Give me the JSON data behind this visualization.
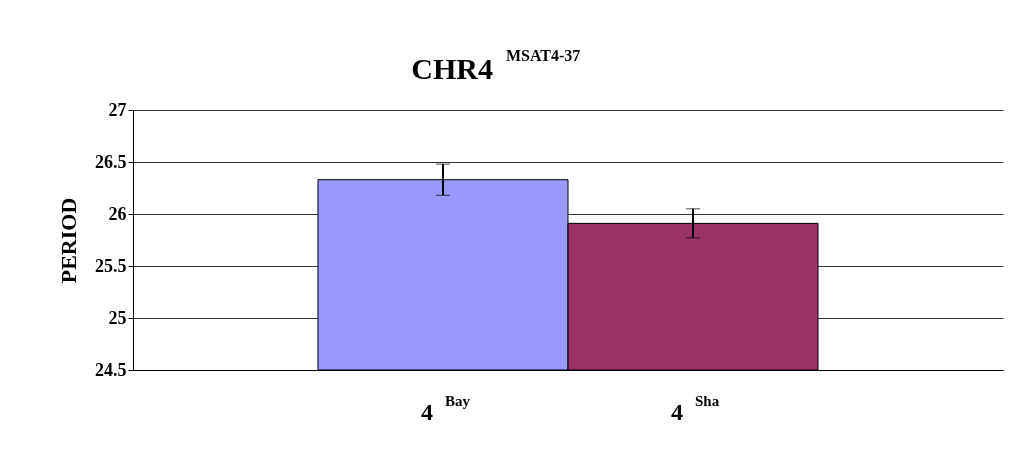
{
  "chart_data": {
    "type": "bar",
    "title": "CHR4 $^{MSAT4-37}$",
    "ylabel": "PERIOD",
    "categories": [
      "4 $^{Bay}$",
      "4 $^{Sha}$"
    ],
    "values": [
      26.33,
      25.91
    ],
    "colors": [
      "#9999ff",
      "#993366"
    ],
    "errors": [
      0.15,
      0.14
    ],
    "ylim": [
      24.5,
      27
    ],
    "yticks": [
      24.5,
      25,
      25.5,
      26,
      26.5,
      27
    ],
    "grid": "y",
    "legend": false
  }
}
